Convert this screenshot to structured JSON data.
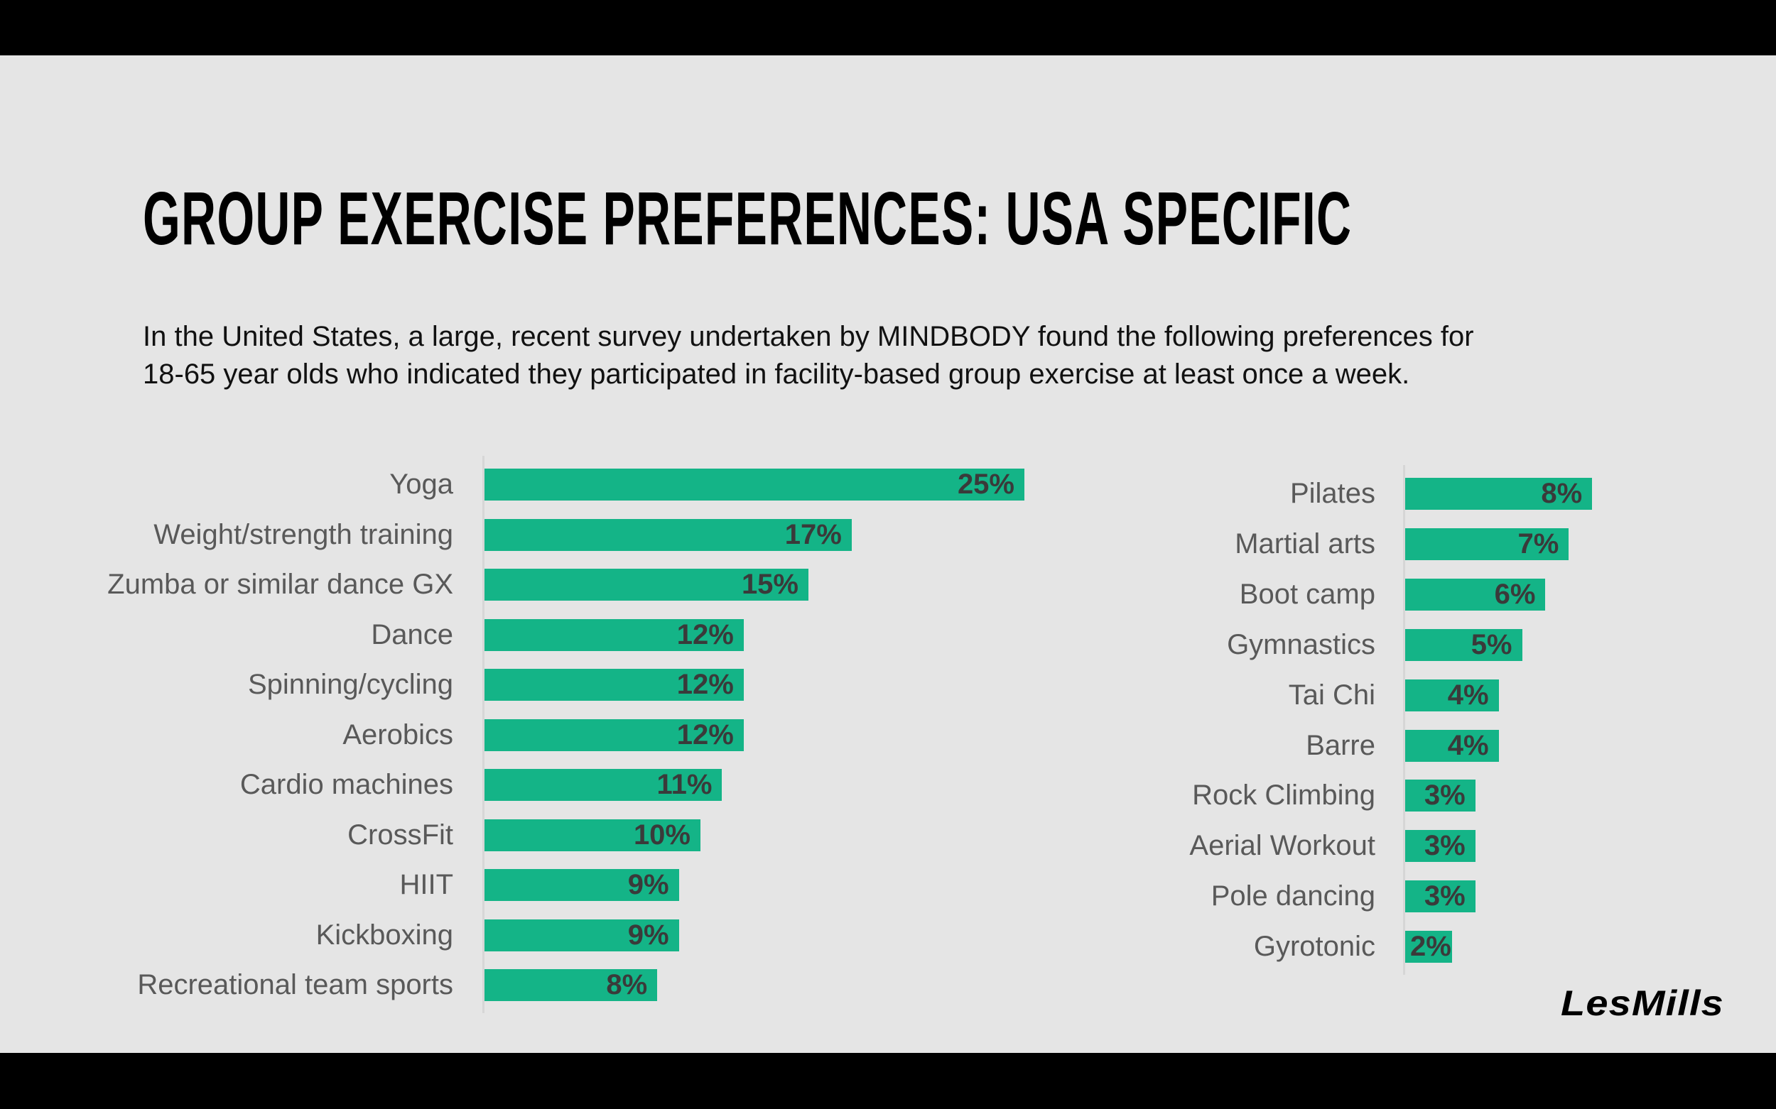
{
  "title": "GROUP EXERCISE PREFERENCES: USA SPECIFIC",
  "subtitle": {
    "line1": "In the United States, a large, recent survey undertaken by MINDBODY found the following preferences for",
    "line2": "18-65 year olds who indicated they participated in facility-based group exercise at least once a week."
  },
  "logo": "LesMills",
  "colors": {
    "bar": "#14b487",
    "background": "#e5e5e5"
  },
  "chart_data": [
    {
      "type": "bar",
      "orientation": "horizontal",
      "categories": [
        "Yoga",
        "Weight/strength training",
        "Zumba or similar dance GX",
        "Dance",
        "Spinning/cycling",
        "Aerobics",
        "Cardio machines",
        "CrossFit",
        "HIIT",
        "Kickboxing",
        "Recreational team sports"
      ],
      "values": [
        25,
        17,
        15,
        12,
        12,
        12,
        11,
        10,
        9,
        9,
        8
      ],
      "labels": [
        "25%",
        "17%",
        "15%",
        "12%",
        "12%",
        "12%",
        "11%",
        "10%",
        "9%",
        "9%",
        "8%"
      ],
      "unit": "%",
      "grid": false
    },
    {
      "type": "bar",
      "orientation": "horizontal",
      "categories": [
        "Pilates",
        "Martial arts",
        "Boot camp",
        "Gymnastics",
        "Tai Chi",
        "Barre",
        "Rock Climbing",
        "Aerial Workout",
        "Pole dancing",
        "Gyrotonic"
      ],
      "values": [
        8,
        7,
        6,
        5,
        4,
        4,
        3,
        3,
        3,
        2
      ],
      "labels": [
        "8%",
        "7%",
        "6%",
        "5%",
        "4%",
        "4%",
        "3%",
        "3%",
        "3%",
        "2%"
      ],
      "unit": "%",
      "grid": false
    }
  ]
}
